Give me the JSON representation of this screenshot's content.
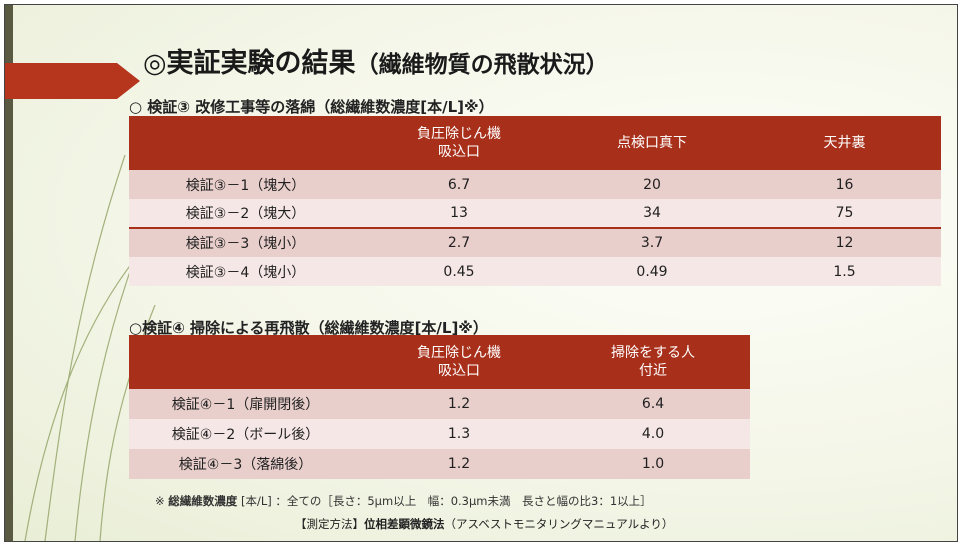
{
  "title": "◎実証実験の結果",
  "title_sub": "（繊維物質の飛散状況）",
  "section3": {
    "heading": "○ 検証③ 改修工事等の落綿（総繊維数濃度[本/L]※）",
    "headers": [
      "",
      "負圧除じん機\n吸込口",
      "点検口真下",
      "天井裏"
    ],
    "rows": [
      [
        "検証③－1（塊大）",
        "6.7",
        "20",
        "16"
      ],
      [
        "検証③－2（塊大）",
        "13",
        "34",
        "75"
      ],
      [
        "検証③－3（塊小）",
        "2.7",
        "3.7",
        "12"
      ],
      [
        "検証③－4（塊小）",
        "0.45",
        "0.49",
        "1.5"
      ]
    ]
  },
  "section4": {
    "heading": "○検証④ 掃除による再飛散（総繊維数濃度[本/L]※）",
    "headers": [
      "",
      "負圧除じん機\n吸込口",
      "掃除をする人\n付近"
    ],
    "rows": [
      [
        "検証④－1（扉開閉後）",
        "1.2",
        "6.4"
      ],
      [
        "検証④－2（ボール後）",
        "1.3",
        "4.0"
      ],
      [
        "検証④－3（落綿後）",
        "1.2",
        "1.0"
      ]
    ]
  },
  "note": {
    "prefix": "※ ",
    "bold": "総繊維数濃度",
    "rest": " [本/L] ：全ての［長さ：5μm以上　幅：0.3μm未満　長さと幅の比3：1以上］"
  },
  "method": {
    "prefix": "【測定方法】",
    "bold": "位相差顕微鏡法",
    "rest": "（アスベストモニタリングマニュアルより）"
  },
  "colors": {
    "header_bg": "#a8301b",
    "row_odd": "#e9cfcc",
    "row_even": "#f5e7e5",
    "ribbon": "#b5351d"
  }
}
